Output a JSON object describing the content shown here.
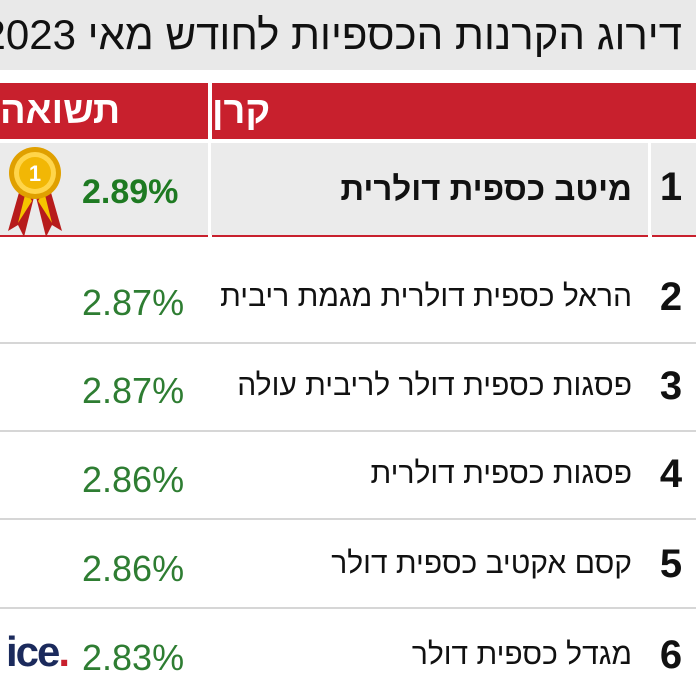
{
  "title": "דירוג הקרנות הכספיות לחודש מאי 2023",
  "chart_data": {
    "type": "table",
    "columns": [
      "קרן",
      "תשואה"
    ],
    "rows": [
      {
        "rank": "1",
        "fund": "מיטב כספית דולרית",
        "return": "2.89%"
      },
      {
        "rank": "2",
        "fund": "הראל כספית דולרית מגמת ריבית",
        "return": "2.87%"
      },
      {
        "rank": "3",
        "fund": "פסגות כספית דולר לריבית עולה",
        "return": "2.87%"
      },
      {
        "rank": "4",
        "fund": "פסגות כספית דולרית",
        "return": "2.86%"
      },
      {
        "rank": "5",
        "fund": "קסם אקטיב כספית דולר",
        "return": "2.86%"
      },
      {
        "rank": "6",
        "fund": "מגדל כספית דולר",
        "return": "2.83%"
      }
    ]
  },
  "medal": {
    "number": "1"
  },
  "logo": {
    "text": "ice",
    "dot": "."
  },
  "colors": {
    "header": "#c8202d",
    "value": "#2e7d32",
    "first_value": "#1e7a22",
    "title_bg": "#e9e9e9"
  }
}
